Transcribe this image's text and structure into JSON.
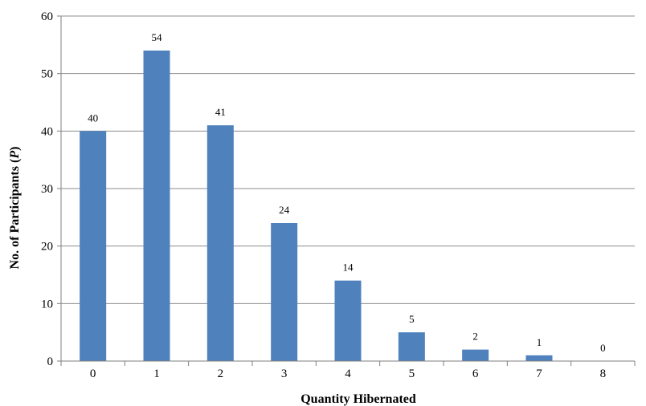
{
  "chart_data": {
    "type": "bar",
    "categories": [
      "0",
      "1",
      "2",
      "3",
      "4",
      "5",
      "6",
      "7",
      "8"
    ],
    "values": [
      40,
      54,
      41,
      24,
      14,
      5,
      2,
      1,
      0
    ],
    "data_labels": [
      "40",
      "54",
      "41",
      "24",
      "14",
      "5",
      "2",
      "1",
      "0"
    ],
    "xlabel": "Quantity Hibernated",
    "ylabel": {
      "prefix": "No. of Participants (",
      "italic": "P",
      "suffix": ")"
    },
    "ylim": [
      0,
      60
    ],
    "yticks": [
      "0",
      "10",
      "20",
      "30",
      "40",
      "50",
      "60"
    ],
    "grid": true,
    "bar_color": "#4f81bd"
  }
}
